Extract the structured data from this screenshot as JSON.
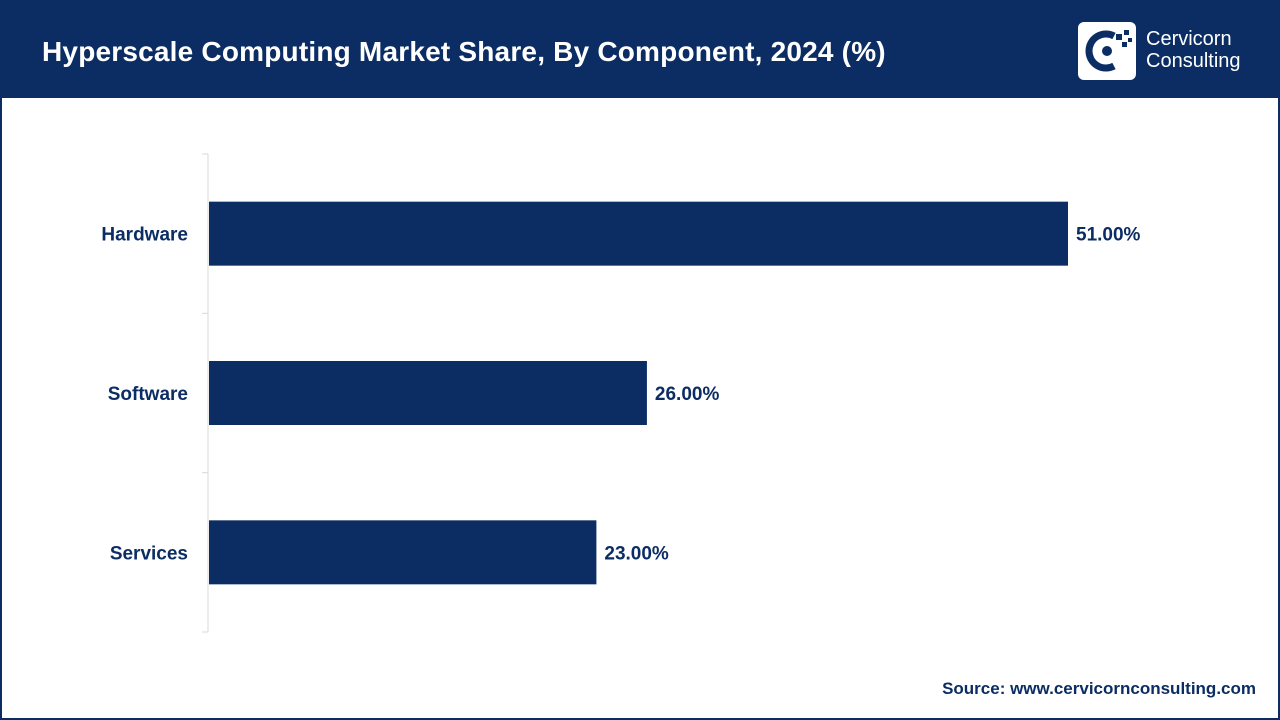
{
  "header": {
    "title": "Hyperscale Computing Market Share, By Component, 2024 (%)",
    "logo": {
      "line1": "Cervicorn",
      "line2": "Consulting",
      "icon": "cervicorn-logo-icon"
    }
  },
  "colors": {
    "header_bg": "#0b2d63",
    "bar": "#0b2d63",
    "text": "#0b2d63"
  },
  "chart_data": {
    "type": "bar",
    "orientation": "horizontal",
    "title": "Hyperscale Computing Market Share, By Component, 2024 (%)",
    "categories": [
      "Hardware",
      "Software",
      "Services"
    ],
    "values": [
      51.0,
      26.0,
      23.0
    ],
    "value_labels": [
      "51.00%",
      "26.00%",
      "23.00%"
    ],
    "xlabel": "",
    "ylabel": "",
    "xlim": [
      0,
      60
    ],
    "grid": false,
    "legend": "none"
  },
  "footer": {
    "source": "Source: www.cervicornconsulting.com"
  }
}
